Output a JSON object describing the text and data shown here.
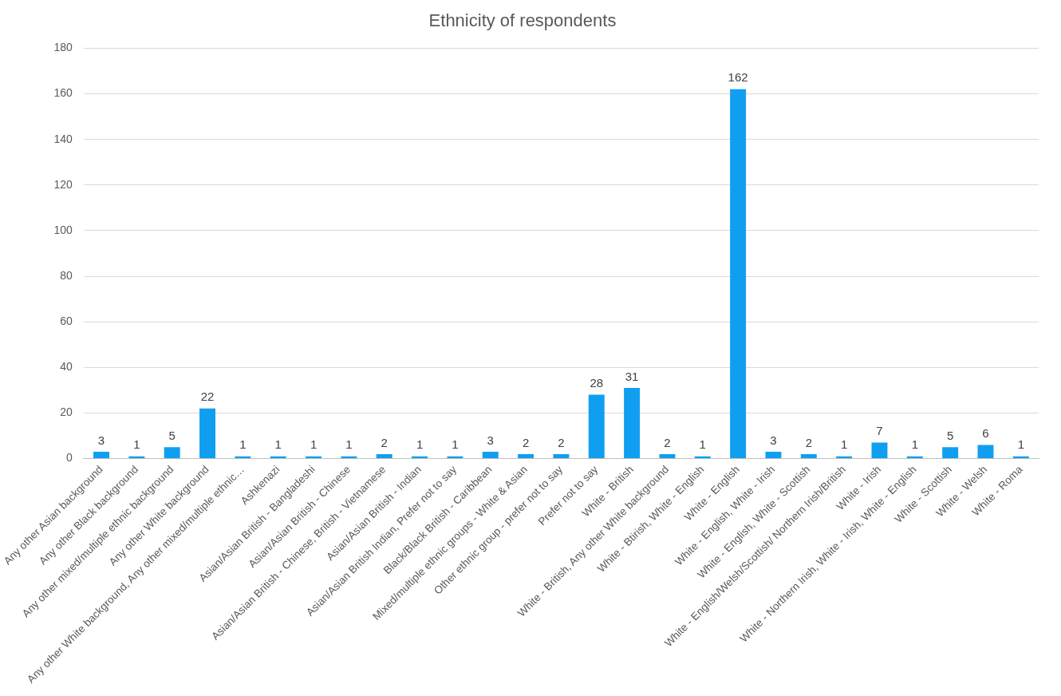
{
  "chart_data": {
    "type": "bar",
    "title": "Ethnicity of respondents",
    "categories": [
      "Any other Asian background",
      "Any other Black background",
      "Any other mixed/multiple ethnic background",
      "Any other White background",
      "Any other White background, Any other mixed/multiple ethnic…",
      "Ashkenazi",
      "Asian/Asian British - Bangladeshi",
      "Asian/Asian British - Chinese",
      "Asian/Asian British - Chinese, British - Vietnamese",
      "Asian/Asian British - Indian",
      "Asian/Asian British Indian, Prefer not to say",
      "Black/Black British - Caribbean",
      "Mixed/multiple ethnic groups - White & Asian",
      "Other ethnic group - prefer not to say",
      "Prefer not to say",
      "White - British",
      "White - British, Any other White background",
      "White - Btirish, White - English",
      "White - English",
      "White - English, White - Irish",
      "White - English, White - Scottish",
      "White - English/Welsh/Scottish/ Northern Irish/British",
      "White - Irish",
      "White - Northern Irish, White - Irish, White - English",
      "White - Scottish",
      "White - Welsh",
      "White - Roma"
    ],
    "values": [
      3,
      1,
      5,
      22,
      1,
      1,
      1,
      1,
      2,
      1,
      1,
      3,
      2,
      2,
      28,
      31,
      2,
      1,
      162,
      3,
      2,
      1,
      7,
      1,
      5,
      6,
      1
    ],
    "color": "#109ff0",
    "ylim": [
      0,
      180
    ],
    "yticks": [
      0,
      20,
      40,
      60,
      80,
      100,
      120,
      140,
      160,
      180
    ],
    "grid": "y",
    "legend": false,
    "data_labels": true
  }
}
